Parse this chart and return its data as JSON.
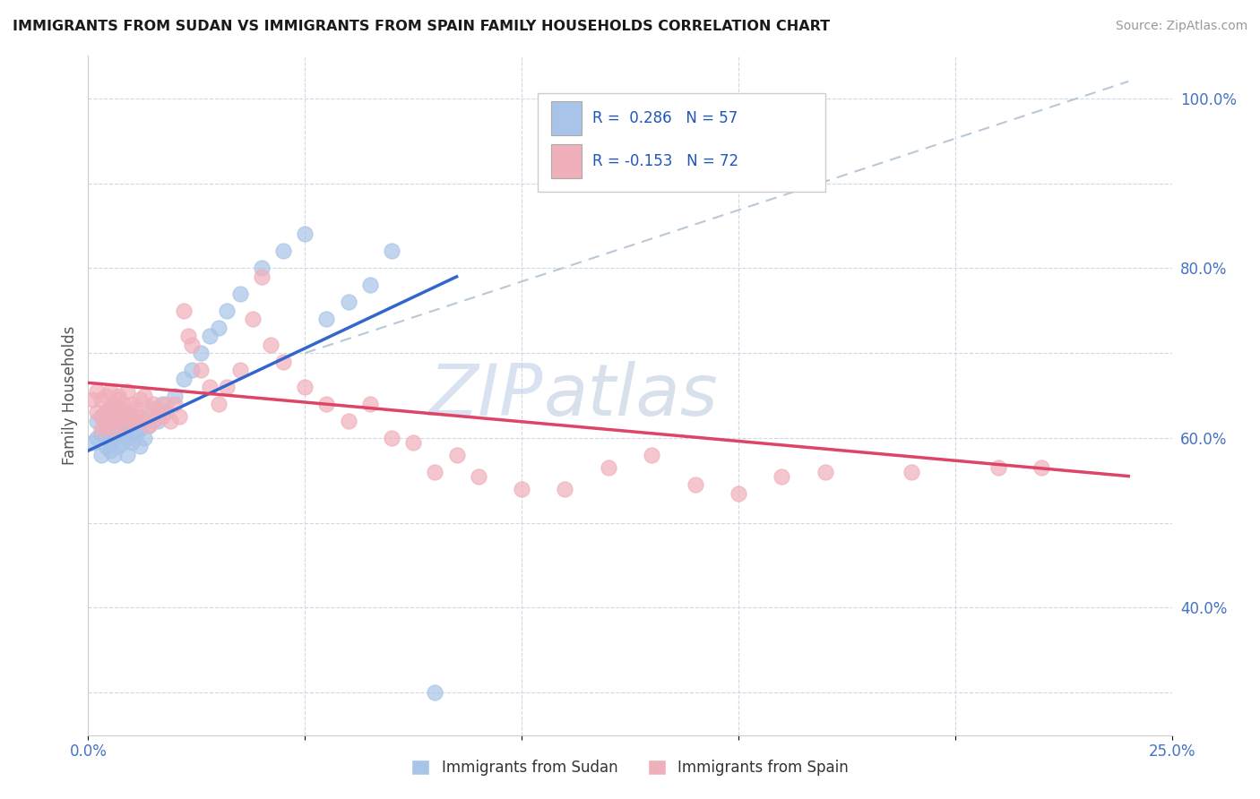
{
  "title": "IMMIGRANTS FROM SUDAN VS IMMIGRANTS FROM SPAIN FAMILY HOUSEHOLDS CORRELATION CHART",
  "source": "Source: ZipAtlas.com",
  "ylabel": "Family Households",
  "sudan_R": 0.286,
  "sudan_N": 57,
  "spain_R": -0.153,
  "spain_N": 72,
  "sudan_color": "#a8c4e8",
  "spain_color": "#f0b0bb",
  "sudan_line_color": "#3366cc",
  "spain_line_color": "#dd4466",
  "dash_color": "#b8c8d8",
  "watermark_color": "#c8d8ec",
  "sudan_points_x": [
    0.001,
    0.002,
    0.002,
    0.003,
    0.003,
    0.003,
    0.004,
    0.004,
    0.004,
    0.004,
    0.005,
    0.005,
    0.005,
    0.005,
    0.006,
    0.006,
    0.006,
    0.006,
    0.007,
    0.007,
    0.007,
    0.008,
    0.008,
    0.008,
    0.009,
    0.009,
    0.009,
    0.01,
    0.01,
    0.01,
    0.011,
    0.011,
    0.012,
    0.012,
    0.013,
    0.013,
    0.014,
    0.015,
    0.016,
    0.017,
    0.018,
    0.02,
    0.022,
    0.024,
    0.026,
    0.028,
    0.03,
    0.032,
    0.035,
    0.04,
    0.045,
    0.05,
    0.055,
    0.06,
    0.065,
    0.07,
    0.08
  ],
  "sudan_points_y": [
    0.595,
    0.62,
    0.6,
    0.58,
    0.605,
    0.625,
    0.61,
    0.63,
    0.59,
    0.615,
    0.6,
    0.625,
    0.585,
    0.595,
    0.6,
    0.615,
    0.635,
    0.58,
    0.605,
    0.59,
    0.62,
    0.595,
    0.615,
    0.63,
    0.6,
    0.58,
    0.61,
    0.595,
    0.615,
    0.62,
    0.605,
    0.625,
    0.61,
    0.59,
    0.62,
    0.6,
    0.615,
    0.635,
    0.62,
    0.64,
    0.63,
    0.65,
    0.67,
    0.68,
    0.7,
    0.72,
    0.73,
    0.75,
    0.77,
    0.8,
    0.82,
    0.84,
    0.74,
    0.76,
    0.78,
    0.82,
    0.3
  ],
  "spain_points_x": [
    0.001,
    0.002,
    0.002,
    0.003,
    0.003,
    0.003,
    0.004,
    0.004,
    0.004,
    0.005,
    0.005,
    0.005,
    0.006,
    0.006,
    0.006,
    0.007,
    0.007,
    0.007,
    0.008,
    0.008,
    0.008,
    0.009,
    0.009,
    0.01,
    0.01,
    0.011,
    0.011,
    0.012,
    0.012,
    0.013,
    0.014,
    0.014,
    0.015,
    0.015,
    0.016,
    0.017,
    0.018,
    0.019,
    0.02,
    0.021,
    0.022,
    0.023,
    0.024,
    0.026,
    0.028,
    0.03,
    0.032,
    0.035,
    0.038,
    0.04,
    0.042,
    0.045,
    0.05,
    0.055,
    0.06,
    0.065,
    0.07,
    0.075,
    0.08,
    0.085,
    0.09,
    0.1,
    0.11,
    0.12,
    0.13,
    0.14,
    0.15,
    0.16,
    0.17,
    0.19,
    0.21,
    0.22
  ],
  "spain_points_y": [
    0.645,
    0.655,
    0.63,
    0.645,
    0.625,
    0.61,
    0.65,
    0.63,
    0.615,
    0.655,
    0.635,
    0.62,
    0.64,
    0.625,
    0.61,
    0.65,
    0.63,
    0.645,
    0.625,
    0.64,
    0.615,
    0.63,
    0.655,
    0.62,
    0.64,
    0.635,
    0.62,
    0.645,
    0.625,
    0.65,
    0.63,
    0.615,
    0.64,
    0.62,
    0.635,
    0.625,
    0.64,
    0.62,
    0.64,
    0.625,
    0.75,
    0.72,
    0.71,
    0.68,
    0.66,
    0.64,
    0.66,
    0.68,
    0.74,
    0.79,
    0.71,
    0.69,
    0.66,
    0.64,
    0.62,
    0.64,
    0.6,
    0.595,
    0.56,
    0.58,
    0.555,
    0.54,
    0.54,
    0.565,
    0.58,
    0.545,
    0.535,
    0.555,
    0.56,
    0.56,
    0.565,
    0.565
  ],
  "xlim": [
    0.0,
    0.25
  ],
  "ylim": [
    0.25,
    1.05
  ],
  "xticks": [
    0.0,
    0.05,
    0.1,
    0.15,
    0.2,
    0.25
  ],
  "xtick_labels": [
    "0.0%",
    "",
    "",
    "",
    "",
    "25.0%"
  ],
  "ytick_labels_right": [
    "100.0%",
    "",
    "80.0%",
    "",
    "60.0%",
    "",
    "40.0%",
    ""
  ],
  "yticks_right": [
    1.0,
    0.9,
    0.8,
    0.7,
    0.6,
    0.5,
    0.4,
    0.3
  ]
}
